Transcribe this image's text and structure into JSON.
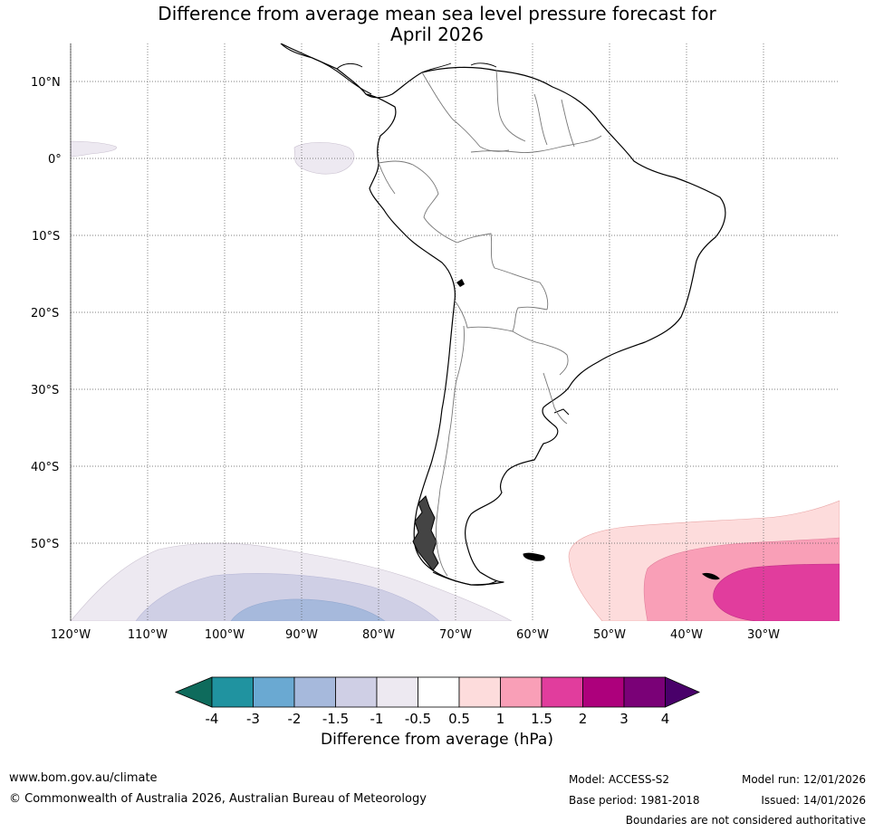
{
  "title": {
    "line1": "Difference from average mean sea level pressure forecast for",
    "line2": "April 2026"
  },
  "map": {
    "lat_labels": [
      "10°N",
      "0°",
      "10°S",
      "20°S",
      "30°S",
      "40°S",
      "50°S"
    ],
    "lon_labels": [
      "120°W",
      "110°W",
      "100°W",
      "90°W",
      "80°W",
      "70°W",
      "60°W",
      "50°W",
      "40°W",
      "30°W"
    ]
  },
  "colorbar": {
    "title": "Difference from average (hPa)",
    "ticks": [
      "-4",
      "-3",
      "-2",
      "-1.5",
      "-1",
      "-0.5",
      "0.5",
      "1",
      "1.5",
      "2",
      "3",
      "4"
    ],
    "colors": [
      "#0e6b5c",
      "#2093a0",
      "#6aa9d2",
      "#a6b9dc",
      "#cfcfe5",
      "#ede9f1",
      "#ffffff",
      "#fddcdc",
      "#f99fb7",
      "#e13d9d",
      "#ad007c",
      "#7a0177",
      "#49006a"
    ]
  },
  "footer": {
    "website": "www.bom.gov.au/climate",
    "copyright": "© Commonwealth of Australia 2026, Australian Bureau of Meteorology",
    "model": "Model: ACCESS-S2",
    "base_period": "Base period: 1981-2018",
    "model_run": "Model run: 12/01/2026",
    "issued": "Issued: 14/01/2026",
    "boundaries": "Boundaries are not considered authoritative"
  }
}
